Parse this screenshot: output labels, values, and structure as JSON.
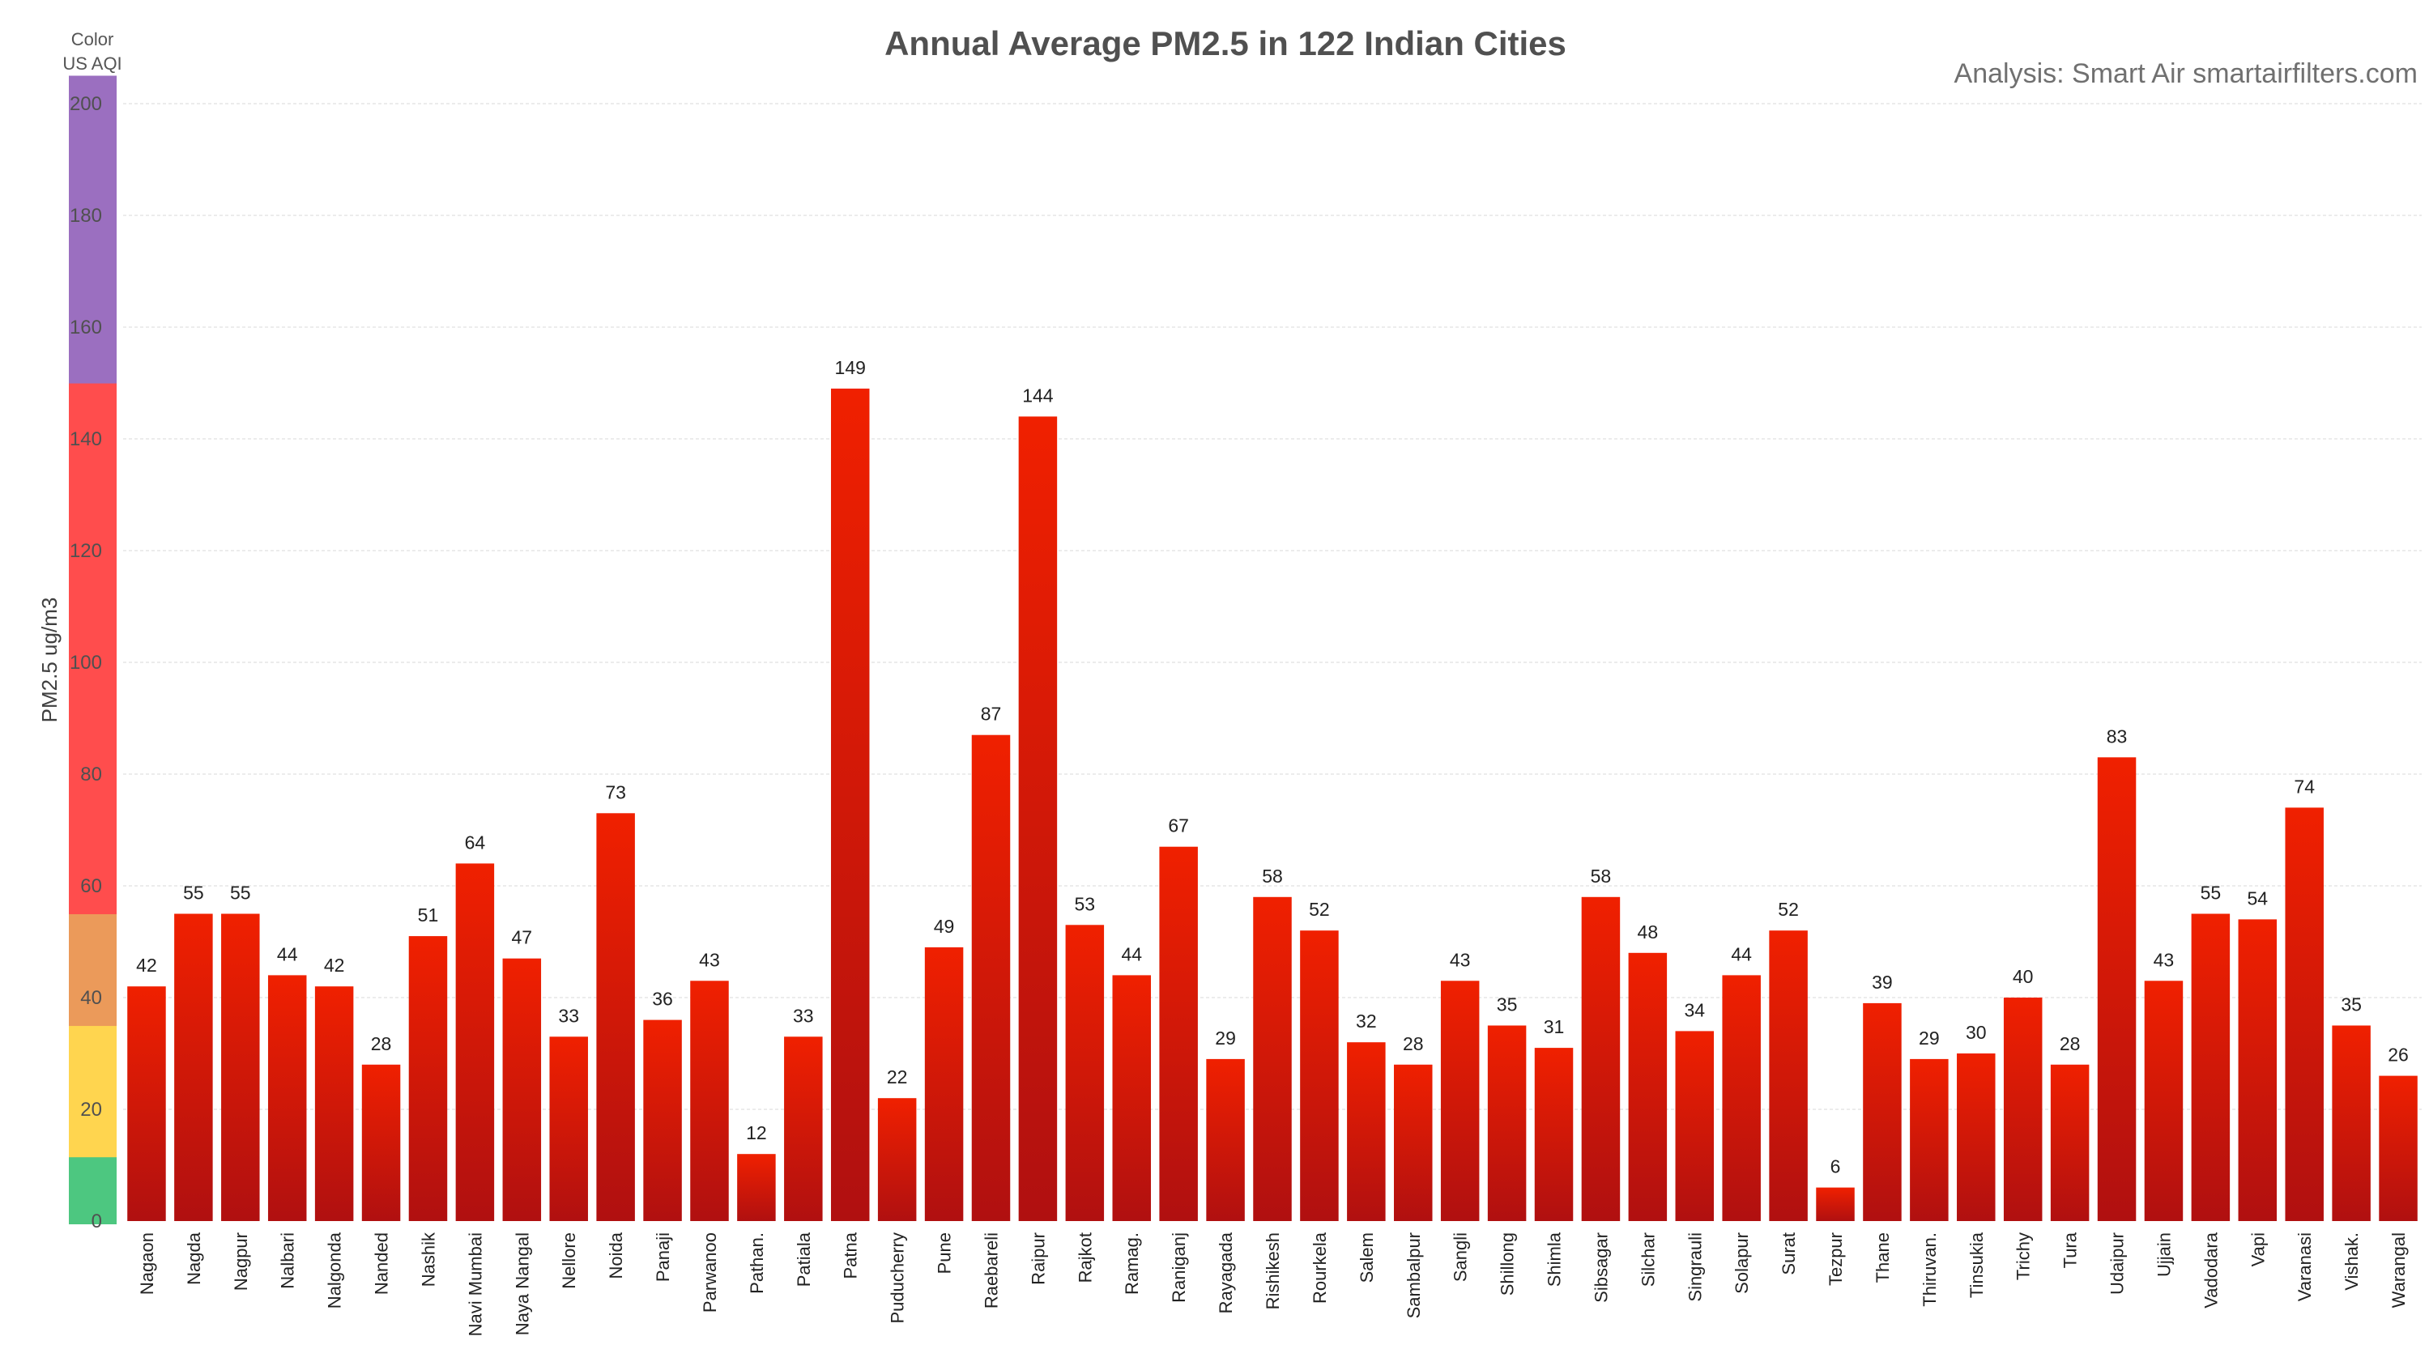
{
  "chart_data": {
    "type": "bar",
    "title": "Annual Average PM2.5 in 122 Indian Cities",
    "credit": "Analysis: Smart Air smartairfilters.com",
    "ylabel": "PM2.5 ug/m3",
    "ylim": [
      0,
      205
    ],
    "yticks": [
      0,
      20,
      40,
      60,
      80,
      100,
      120,
      140,
      160,
      180,
      200
    ],
    "grid": true,
    "categories": [
      "Nagaon",
      "Nagda",
      "Nagpur",
      "Nalbari",
      "Nalgonda",
      "Nanded",
      "Nashik",
      "Navi Mumbai",
      "Naya Nangal",
      "Nellore",
      "Noida",
      "Panaji",
      "Parwanoo",
      "Pathan.",
      "Patiala",
      "Patna",
      "Puducherry",
      "Pune",
      "Raebareli",
      "Raipur",
      "Rajkot",
      "Ramag.",
      "Raniganj",
      "Rayagada",
      "Rishikesh",
      "Rourkela",
      "Salem",
      "Sambalpur",
      "Sangli",
      "Shillong",
      "Shimla",
      "Sibsagar",
      "Silchar",
      "Singrauli",
      "Solapur",
      "Surat",
      "Tezpur",
      "Thane",
      "Thiruvan.",
      "Tinsukia",
      "Trichy",
      "Tura",
      "Udaipur",
      "Ujjain",
      "Vadodara",
      "Vapi",
      "Varanasi",
      "Vishak.",
      "Warangal"
    ],
    "values": [
      42,
      55,
      55,
      44,
      42,
      28,
      51,
      64,
      47,
      33,
      73,
      36,
      43,
      12,
      33,
      149,
      22,
      49,
      87,
      144,
      53,
      44,
      67,
      29,
      58,
      52,
      32,
      28,
      43,
      35,
      31,
      58,
      48,
      34,
      44,
      52,
      6,
      39,
      29,
      30,
      40,
      28,
      83,
      43,
      55,
      54,
      74,
      35,
      26
    ],
    "data_labels": [
      "42",
      "55",
      "55",
      "44",
      "42",
      "28",
      "51",
      "64",
      "47",
      "33",
      "73",
      "36",
      "43",
      "12",
      "33",
      "149",
      "22",
      "49",
      "87",
      "144",
      "53",
      "44",
      "67",
      "29",
      "58",
      "52",
      "32",
      "28",
      "43",
      "35",
      "31",
      "58",
      "48",
      "34",
      "44",
      "52",
      "6",
      "39",
      "29",
      "30",
      "40",
      "28",
      "83",
      "43",
      "55",
      "54",
      "74",
      "35",
      "26"
    ],
    "bar_color_top": "#f02000",
    "bar_color_bottom": "#b01010",
    "aqi_legend": {
      "title_line1": "Color",
      "title_line2": "US AQI",
      "bands": [
        {
          "from": 0,
          "to": 12,
          "color": "#4dc780"
        },
        {
          "from": 12,
          "to": 35.5,
          "color": "#ffd54f"
        },
        {
          "from": 35.5,
          "to": 55.5,
          "color": "#eb9a5a"
        },
        {
          "from": 55.5,
          "to": 150.5,
          "color": "#ff4d4d"
        },
        {
          "from": 150.5,
          "to": 205,
          "color": "#9b6fc0"
        }
      ]
    }
  }
}
